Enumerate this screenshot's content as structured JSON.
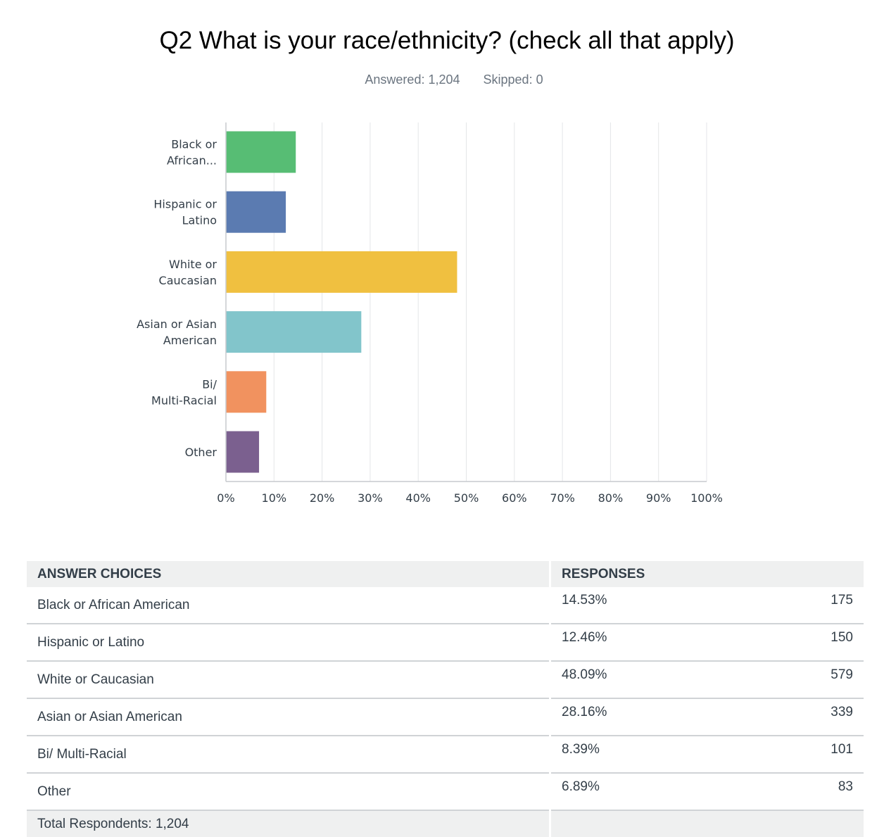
{
  "header": {
    "title": "Q2 What is your race/ethnicity? (check all that apply)",
    "answered": "Answered: 1,204",
    "skipped": "Skipped: 0"
  },
  "chart_data": {
    "type": "bar",
    "orientation": "horizontal",
    "categories": [
      [
        "Black or",
        "African..."
      ],
      [
        "Hispanic or",
        "Latino"
      ],
      [
        "White or",
        "Caucasian"
      ],
      [
        "Asian or Asian",
        "American"
      ],
      [
        "Bi/",
        "Multi-Racial"
      ],
      [
        "Other"
      ]
    ],
    "values": [
      14.53,
      12.46,
      48.09,
      28.16,
      8.39,
      6.89
    ],
    "colors": [
      "#57bd74",
      "#5b7bb1",
      "#f0c040",
      "#82c5cb",
      "#f1925f",
      "#7b608f"
    ],
    "xlim": [
      0,
      100
    ],
    "xticks": [
      "0%",
      "10%",
      "20%",
      "30%",
      "40%",
      "50%",
      "60%",
      "70%",
      "80%",
      "90%",
      "100%"
    ],
    "grid": true
  },
  "table": {
    "headers": [
      "ANSWER CHOICES",
      "RESPONSES"
    ],
    "rows": [
      {
        "choice": "Black or African American",
        "percent": "14.53%",
        "count": "175"
      },
      {
        "choice": "Hispanic or Latino",
        "percent": "12.46%",
        "count": "150"
      },
      {
        "choice": "White or Caucasian",
        "percent": "48.09%",
        "count": "579"
      },
      {
        "choice": "Asian or Asian American",
        "percent": "28.16%",
        "count": "339"
      },
      {
        "choice": "Bi/ Multi-Racial",
        "percent": "8.39%",
        "count": "101"
      },
      {
        "choice": "Other",
        "percent": "6.89%",
        "count": "83"
      }
    ],
    "total": "Total Respondents: 1,204"
  }
}
